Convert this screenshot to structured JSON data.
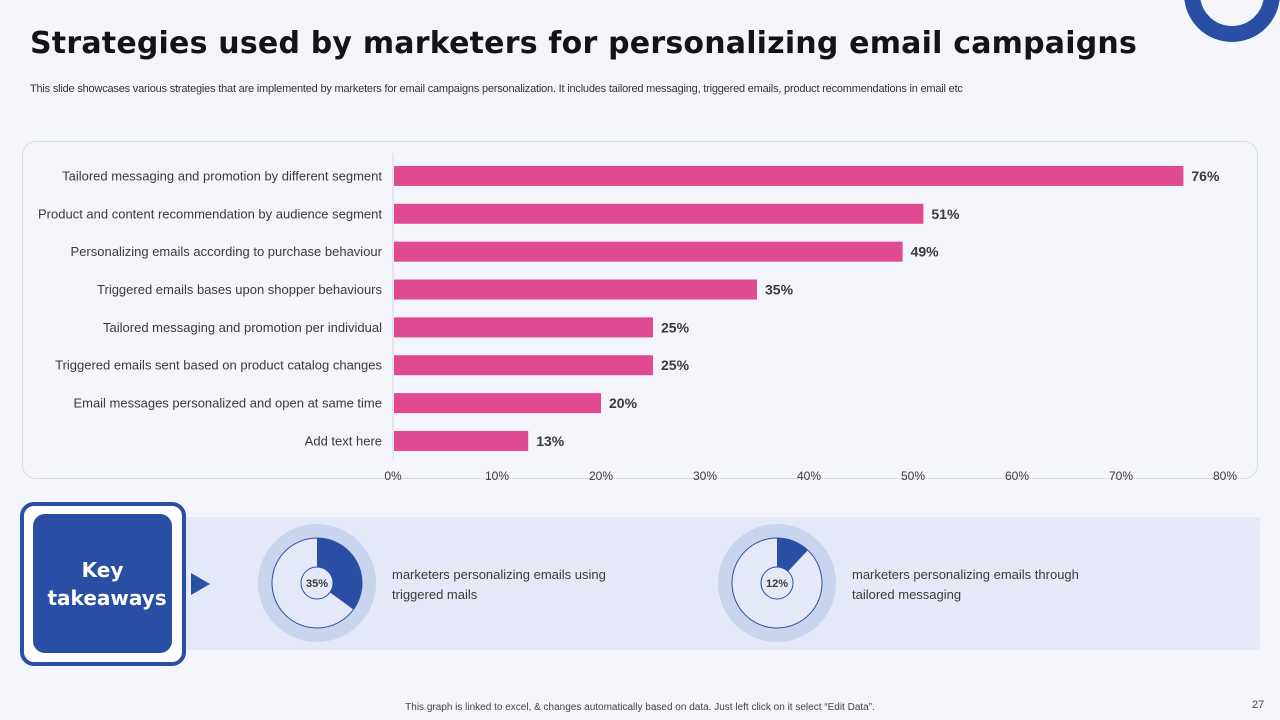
{
  "slide": {
    "title": "Strategies used by marketers for personalizing email campaigns",
    "subtitle": "This slide showcases various strategies that are implemented by marketers for email campaigns personalization. It includes tailored messaging, triggered emails, product recommendations in email etc",
    "footer_note": "This graph is linked to excel, & changes automatically based on data. Just left click on it select “Edit Data”.",
    "page_number": "27"
  },
  "colors": {
    "bar": "#e04a90",
    "accent": "#2a4ea3",
    "donut_ring": "#c9d4ee",
    "donut_fill": "#2a4ea3"
  },
  "chart_data": {
    "type": "bar",
    "orientation": "horizontal",
    "title": "",
    "xlabel": "",
    "ylabel": "",
    "categories": [
      "Tailored messaging and promotion by different segment",
      "Product and content recommendation by audience segment",
      "Personalizing emails according to purchase behaviour",
      "Triggered emails bases upon shopper behaviours",
      "Tailored messaging and promotion per individual",
      "Triggered emails sent based on product catalog changes",
      "Email messages personalized and open at same time",
      "Add text here"
    ],
    "values": [
      76,
      51,
      49,
      35,
      25,
      25,
      20,
      13
    ],
    "value_labels": [
      "76%",
      "51%",
      "49%",
      "35%",
      "25%",
      "25%",
      "20%",
      "13%"
    ],
    "xlim": [
      0,
      80
    ],
    "xticks": [
      0,
      10,
      20,
      30,
      40,
      50,
      60,
      70,
      80
    ],
    "xtick_labels": [
      "0%",
      "10%",
      "20%",
      "30%",
      "40%",
      "50%",
      "60%",
      "70%",
      "80%"
    ],
    "grid": false,
    "legend": "none"
  },
  "takeaways": {
    "heading": "Key takeaways",
    "items": [
      {
        "percent": 35,
        "label": "35%",
        "text": "marketers personalizing emails using triggered mails"
      },
      {
        "percent": 12,
        "label": "12%",
        "text": "marketers personalizing emails through tailored messaging"
      }
    ]
  }
}
